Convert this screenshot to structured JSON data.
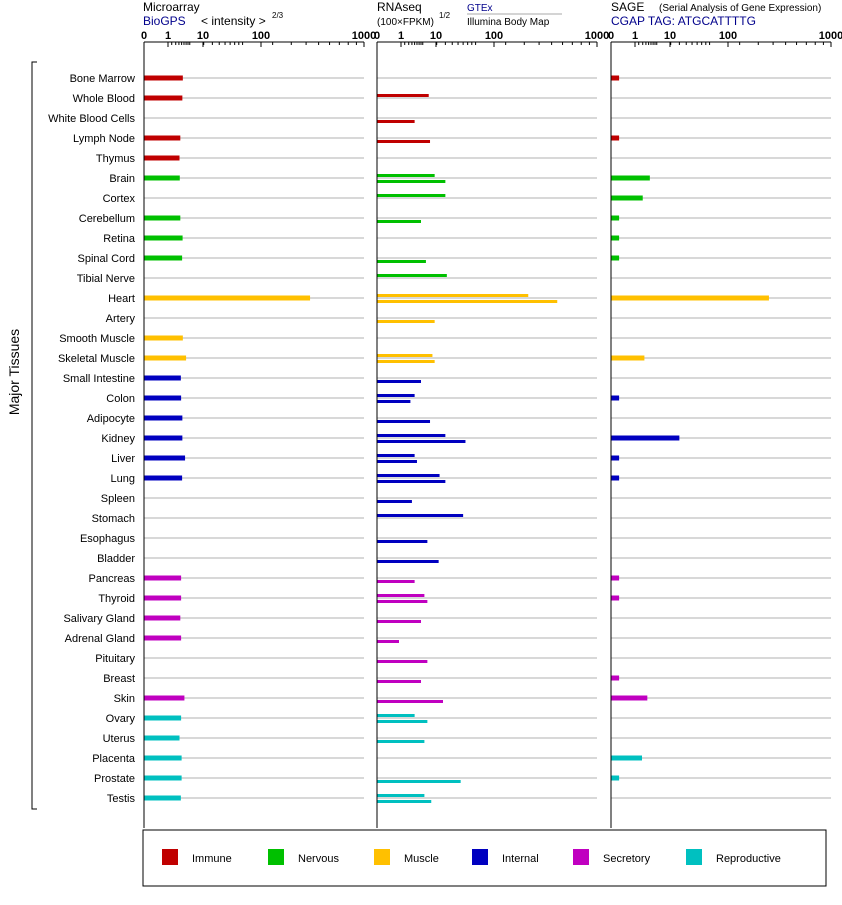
{
  "chart_data": {
    "type": "bar",
    "y_axis_label": "Major Tissues",
    "tick_labels": [
      "0",
      "1",
      "10",
      "100",
      "1000"
    ],
    "tissues": [
      "Bone Marrow",
      "Whole Blood",
      "White Blood Cells",
      "Lymph Node",
      "Thymus",
      "Brain",
      "Cortex",
      "Cerebellum",
      "Retina",
      "Spinal Cord",
      "Tibial Nerve",
      "Heart",
      "Artery",
      "Smooth Muscle",
      "Skeletal Muscle",
      "Small Intestine",
      "Colon",
      "Adipocyte",
      "Kidney",
      "Liver",
      "Lung",
      "Spleen",
      "Stomach",
      "Esophagus",
      "Bladder",
      "Pancreas",
      "Thyroid",
      "Salivary Gland",
      "Adrenal Gland",
      "Pituitary",
      "Breast",
      "Skin",
      "Ovary",
      "Uterus",
      "Placenta",
      "Prostate",
      "Testis"
    ],
    "categories": [
      "Immune",
      "Immune",
      "Immune",
      "Immune",
      "Immune",
      "Nervous",
      "Nervous",
      "Nervous",
      "Nervous",
      "Nervous",
      "Nervous",
      "Muscle",
      "Muscle",
      "Muscle",
      "Muscle",
      "Internal",
      "Internal",
      "Internal",
      "Internal",
      "Internal",
      "Internal",
      "Internal",
      "Internal",
      "Internal",
      "Internal",
      "Secretory",
      "Secretory",
      "Secretory",
      "Secretory",
      "Secretory",
      "Secretory",
      "Secretory",
      "Reproductive",
      "Reproductive",
      "Reproductive",
      "Reproductive",
      "Reproductive"
    ],
    "legend": [
      {
        "name": "Immune",
        "color": "#c00000"
      },
      {
        "name": "Nervous",
        "color": "#00c000"
      },
      {
        "name": "Muscle",
        "color": "#ffc000"
      },
      {
        "name": "Internal",
        "color": "#0000c0"
      },
      {
        "name": "Secretory",
        "color": "#c000c0"
      },
      {
        "name": "Reproductive",
        "color": "#00c0c0"
      }
    ],
    "panels": [
      {
        "id": "microarray",
        "title": "Microarray",
        "source": "BioGPS",
        "unit": "< intensity >",
        "unit_exp": "2/3",
        "series": [
          {
            "values": [
              5.5,
              5.3,
              null,
              4.5,
              4.2,
              4.3,
              null,
              4.5,
              5.4,
              5.2,
              null,
              430,
              null,
              5.5,
              7,
              4.7,
              4.8,
              5.3,
              5.3,
              6.5,
              5.2,
              null,
              null,
              null,
              null,
              4.8,
              4.8,
              4.5,
              4.8,
              null,
              null,
              6.2,
              4.8,
              4.2,
              5.0,
              5.0,
              4.7
            ]
          }
        ]
      },
      {
        "id": "rnaseq",
        "title": "RNAseq",
        "unit": "(100×FPKM)",
        "unit_exp": "1/2",
        "source": "GTEx",
        "source2": "Illumina Body Map",
        "series": [
          {
            "values": [
              null,
              13,
              null,
              null,
              null,
              18,
              30,
              null,
              null,
              null,
              32,
              325,
              null,
              null,
              16,
              null,
              5,
              null,
              30,
              5,
              23,
              null,
              60,
              null,
              null,
              null,
              10,
              null,
              null,
              null,
              null,
              null,
              5,
              null,
              null,
              null,
              10
            ]
          },
          {
            "values": [
              null,
              null,
              5,
              14,
              null,
              30,
              null,
              8,
              null,
              11,
              null,
              550,
              18,
              null,
              18,
              8,
              3.5,
              14,
              65,
              6,
              30,
              4,
              null,
              12,
              22,
              5,
              12,
              8,
              1,
              12,
              8,
              27,
              12,
              10,
              null,
              55,
              15
            ]
          }
        ]
      },
      {
        "id": "sage",
        "title": "SAGE",
        "subtitle": "(Serial Analysis of Gene Expression)",
        "source": "CGAP TAG: ATGCATTTTG",
        "series": [
          {
            "values": [
              0.05,
              null,
              null,
              0.05,
              null,
              5.5,
              3,
              0.05,
              0.05,
              0.05,
              null,
              370,
              null,
              null,
              3.5,
              null,
              0.05,
              null,
              30,
              0.05,
              0.05,
              null,
              null,
              null,
              null,
              0.05,
              0.05,
              null,
              null,
              null,
              0.05,
              4.5,
              null,
              null,
              2.8,
              0.05,
              null
            ]
          }
        ]
      }
    ]
  }
}
